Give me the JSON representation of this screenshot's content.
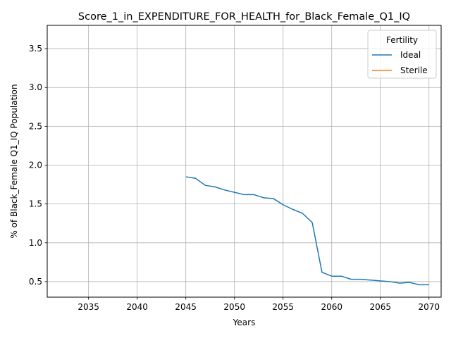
{
  "chart_data": {
    "type": "line",
    "title": "Score_1_in_EXPENDITURE_FOR_HEALTH_for_Black_Female_Q1_IQ",
    "xlabel": "Years",
    "ylabel": "% of Black_Female Q1_IQ Population",
    "xlim": [
      2030.75,
      2071.25
    ],
    "ylim": [
      0.3,
      3.8
    ],
    "xticks": [
      2035,
      2040,
      2045,
      2050,
      2055,
      2060,
      2065,
      2070
    ],
    "yticks": [
      0.5,
      1.0,
      1.5,
      2.0,
      2.5,
      3.0,
      3.5
    ],
    "xtick_labels": [
      "2035",
      "2040",
      "2045",
      "2050",
      "2055",
      "2060",
      "2065",
      "2070"
    ],
    "ytick_labels": [
      "0.5",
      "1.0",
      "1.5",
      "2.0",
      "2.5",
      "3.0",
      "3.5"
    ],
    "grid": true,
    "legend": {
      "title": "Fertility",
      "placement": "top-right"
    },
    "series": [
      {
        "name": "Ideal",
        "color": "#1f77b4",
        "x": [
          2045,
          2046,
          2047,
          2048,
          2049,
          2050,
          2051,
          2052,
          2053,
          2054,
          2055,
          2056,
          2057,
          2058,
          2059,
          2060,
          2061,
          2062,
          2063,
          2064,
          2065,
          2066,
          2067,
          2068,
          2069,
          2070
        ],
        "y": [
          1.85,
          1.83,
          1.74,
          1.72,
          1.68,
          1.65,
          1.62,
          1.62,
          1.58,
          1.57,
          1.49,
          1.43,
          1.38,
          1.26,
          0.62,
          0.57,
          0.57,
          0.53,
          0.53,
          0.52,
          0.51,
          0.5,
          0.48,
          0.49,
          0.46,
          0.46
        ]
      },
      {
        "name": "Sterile",
        "color": "#ff7f0e",
        "x": [],
        "y": []
      }
    ]
  }
}
